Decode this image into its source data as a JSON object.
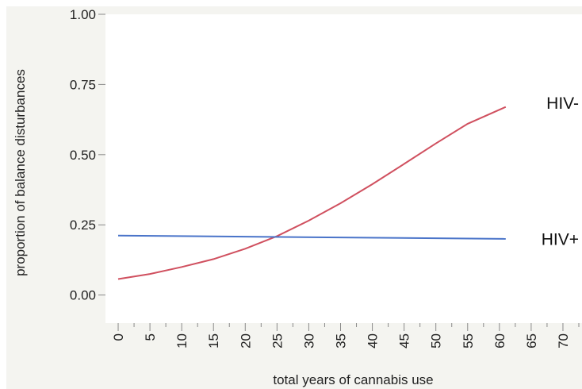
{
  "chart_data": {
    "type": "line",
    "title": "",
    "xlabel": "total years of cannabis use",
    "ylabel": "proportion of balance disturbances",
    "xlim": [
      -2,
      73
    ],
    "ylim": [
      -0.1,
      1.0
    ],
    "x_ticks": [
      0,
      5,
      10,
      15,
      20,
      25,
      30,
      35,
      40,
      45,
      50,
      55,
      60,
      65,
      70
    ],
    "y_ticks": [
      "0.00",
      "0.25",
      "0.50",
      "0.75",
      "1.00"
    ],
    "x_minor_ticks": [
      2.5,
      7.5,
      12.5,
      17.5,
      22.5,
      27.5,
      32.5,
      37.5,
      42.5,
      47.5,
      52.5,
      57.5,
      62.5,
      67.5,
      72.5
    ],
    "grid": false,
    "legend": "none",
    "series": [
      {
        "name": "HIV-",
        "color": "#d0505f",
        "x": [
          0,
          5,
          10,
          15,
          20,
          25,
          30,
          35,
          40,
          45,
          50,
          55,
          61
        ],
        "y": [
          0.057,
          0.075,
          0.1,
          0.128,
          0.165,
          0.21,
          0.265,
          0.327,
          0.395,
          0.467,
          0.54,
          0.61,
          0.67
        ]
      },
      {
        "name": "HIV+",
        "color": "#4a74c9",
        "x": [
          0,
          61
        ],
        "y": [
          0.212,
          0.2
        ]
      }
    ]
  }
}
